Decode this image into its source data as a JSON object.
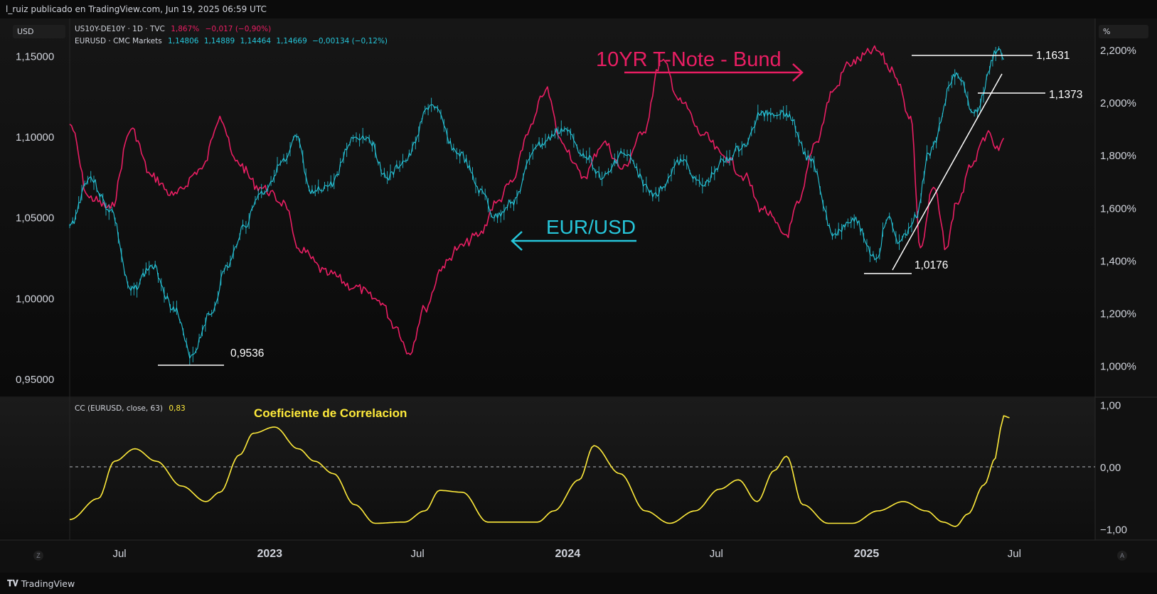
{
  "header": {
    "publisher": "l_ruiz publicado en TradingView.com, Jun 19, 2025 06:59 UTC"
  },
  "left_axis_chip": "USD",
  "right_axis_chip": "%",
  "legend": {
    "row1": {
      "symbol": "US10Y-DE10Y · 1D · TVC",
      "last": "1,867%",
      "change": "−0,017 (−0,90%)"
    },
    "row2": {
      "symbol": "EURUSD · CMC Markets",
      "open": "1,14806",
      "high": "1,14889",
      "low": "1,14464",
      "close": "1,14669",
      "change": "−0,00134 (−0,12%)"
    },
    "row3": {
      "symbol": "CC (EURUSD, close, 63)",
      "value": "0,83"
    }
  },
  "annotations": {
    "spread_label": "10YR T-Note - Bund",
    "eurusd_label": "EUR/USD",
    "corr_label": "Coeficiente de Correlacion",
    "levels": [
      "1,1631",
      "1,1373",
      "1,0176",
      "0,9536"
    ]
  },
  "footer": {
    "brand": "TradingView",
    "left_corner": "Z",
    "right_corner": "A"
  },
  "colors": {
    "eurusd": "#26c6da",
    "spread": "#e91e63",
    "cc": "#ffeb3b",
    "background": "#0b0b0b",
    "panel": "#131313"
  },
  "chart_data": [
    {
      "type": "line",
      "x_axis": {
        "tick_labels": [
          "Jul",
          "2023",
          "Jul",
          "2024",
          "Jul",
          "2025",
          "Jul"
        ],
        "dates": [
          "2022-07-01",
          "2023-01-01",
          "2023-07-01",
          "2024-01-01",
          "2024-07-01",
          "2025-01-01",
          "2025-07-01"
        ]
      },
      "y_axis_left": {
        "ticks": [
          "1,15000",
          "1,10000",
          "1,05000",
          "1,00000",
          "0,95000"
        ],
        "values": [
          1.15,
          1.1,
          1.05,
          1.0,
          0.95
        ],
        "range": [
          0.95,
          1.17
        ]
      },
      "y_axis_right": {
        "ticks": [
          "2,200%",
          "2,000%",
          "1,800%",
          "1,600%",
          "1,400%",
          "1,200%",
          "1,000%"
        ],
        "values": [
          2.2,
          2.0,
          1.8,
          1.6,
          1.4,
          1.2,
          1.0
        ],
        "range": [
          0.95,
          2.3
        ]
      },
      "series": [
        {
          "name": "EURUSD · CMC Markets",
          "axis": "left",
          "points": [
            [
              "2022-05-01",
              1.045
            ],
            [
              "2022-05-25",
              1.075
            ],
            [
              "2022-06-20",
              1.055
            ],
            [
              "2022-07-15",
              1.005
            ],
            [
              "2022-08-10",
              1.02
            ],
            [
              "2022-09-05",
              0.995
            ],
            [
              "2022-09-27",
              0.965
            ],
            [
              "2022-10-20",
              0.99
            ],
            [
              "2022-11-10",
              1.02
            ],
            [
              "2022-12-01",
              1.045
            ],
            [
              "2022-12-20",
              1.065
            ],
            [
              "2023-01-20",
              1.085
            ],
            [
              "2023-02-03",
              1.1
            ],
            [
              "2023-02-20",
              1.065
            ],
            [
              "2023-03-15",
              1.07
            ],
            [
              "2023-04-15",
              1.1
            ],
            [
              "2023-05-01",
              1.1
            ],
            [
              "2023-05-25",
              1.075
            ],
            [
              "2023-06-15",
              1.085
            ],
            [
              "2023-07-18",
              1.12
            ],
            [
              "2023-08-20",
              1.09
            ],
            [
              "2023-09-20",
              1.065
            ],
            [
              "2023-10-03",
              1.05
            ],
            [
              "2023-10-25",
              1.06
            ],
            [
              "2023-11-25",
              1.095
            ],
            [
              "2023-12-28",
              1.105
            ],
            [
              "2024-01-20",
              1.09
            ],
            [
              "2024-02-14",
              1.075
            ],
            [
              "2024-03-08",
              1.09
            ],
            [
              "2024-04-16",
              1.065
            ],
            [
              "2024-05-20",
              1.085
            ],
            [
              "2024-06-14",
              1.07
            ],
            [
              "2024-07-10",
              1.085
            ],
            [
              "2024-08-05",
              1.095
            ],
            [
              "2024-08-25",
              1.115
            ],
            [
              "2024-09-25",
              1.115
            ],
            [
              "2024-10-25",
              1.085
            ],
            [
              "2024-11-22",
              1.04
            ],
            [
              "2024-12-15",
              1.05
            ],
            [
              "2025-01-13",
              1.025
            ],
            [
              "2025-01-27",
              1.05
            ],
            [
              "2025-02-10",
              1.035
            ],
            [
              "2025-03-03",
              1.05
            ],
            [
              "2025-03-18",
              1.09
            ],
            [
              "2025-04-21",
              1.14
            ],
            [
              "2025-05-13",
              1.115
            ],
            [
              "2025-06-12",
              1.155
            ],
            [
              "2025-06-18",
              1.148
            ]
          ]
        },
        {
          "name": "US10Y-DE10Y · 1D · TVC",
          "axis": "right",
          "points": [
            [
              "2022-05-01",
              1.92
            ],
            [
              "2022-05-25",
              1.64
            ],
            [
              "2022-06-20",
              1.6
            ],
            [
              "2022-07-15",
              1.9
            ],
            [
              "2022-08-10",
              1.72
            ],
            [
              "2022-09-05",
              1.65
            ],
            [
              "2022-10-10",
              1.75
            ],
            [
              "2022-11-01",
              1.95
            ],
            [
              "2022-11-20",
              1.78
            ],
            [
              "2022-12-20",
              1.68
            ],
            [
              "2023-01-20",
              1.62
            ],
            [
              "2023-02-03",
              1.45
            ],
            [
              "2023-03-15",
              1.35
            ],
            [
              "2023-04-15",
              1.3
            ],
            [
              "2023-05-15",
              1.25
            ],
            [
              "2023-06-05",
              1.15
            ],
            [
              "2023-06-20",
              1.05
            ],
            [
              "2023-07-10",
              1.22
            ],
            [
              "2023-08-01",
              1.38
            ],
            [
              "2023-08-20",
              1.45
            ],
            [
              "2023-09-15",
              1.5
            ],
            [
              "2023-10-05",
              1.62
            ],
            [
              "2023-10-25",
              1.7
            ],
            [
              "2023-11-15",
              1.9
            ],
            [
              "2023-12-05",
              2.05
            ],
            [
              "2023-12-25",
              1.85
            ],
            [
              "2024-01-20",
              1.72
            ],
            [
              "2024-02-14",
              1.85
            ],
            [
              "2024-03-08",
              1.75
            ],
            [
              "2024-04-01",
              1.88
            ],
            [
              "2024-04-25",
              2.16
            ],
            [
              "2024-05-20",
              2.0
            ],
            [
              "2024-06-14",
              1.88
            ],
            [
              "2024-07-10",
              1.8
            ],
            [
              "2024-08-05",
              1.72
            ],
            [
              "2024-08-25",
              1.6
            ],
            [
              "2024-09-25",
              1.5
            ],
            [
              "2024-10-10",
              1.62
            ],
            [
              "2024-10-30",
              1.85
            ],
            [
              "2024-11-22",
              2.05
            ],
            [
              "2024-12-10",
              2.15
            ],
            [
              "2025-01-13",
              2.2
            ],
            [
              "2025-02-03",
              2.12
            ],
            [
              "2025-02-24",
              1.95
            ],
            [
              "2025-03-08",
              1.45
            ],
            [
              "2025-03-24",
              1.68
            ],
            [
              "2025-04-09",
              1.45
            ],
            [
              "2025-04-21",
              1.62
            ],
            [
              "2025-05-13",
              1.78
            ],
            [
              "2025-05-28",
              1.88
            ],
            [
              "2025-06-12",
              1.82
            ],
            [
              "2025-06-18",
              1.867
            ]
          ]
        }
      ]
    },
    {
      "type": "line",
      "y_axis": {
        "ticks": [
          "1,00",
          "0,00",
          "−1,00"
        ],
        "values": [
          1,
          0,
          -1
        ],
        "range": [
          -1.1,
          1.05
        ]
      },
      "series": [
        {
          "name": "CC (EURUSD, close, 63)",
          "points": [
            [
              "2022-05-01",
              -0.84
            ],
            [
              "2022-06-05",
              -0.5
            ],
            [
              "2022-06-25",
              0.1
            ],
            [
              "2022-07-20",
              0.3
            ],
            [
              "2022-08-15",
              0.1
            ],
            [
              "2022-09-15",
              -0.3
            ],
            [
              "2022-10-15",
              -0.55
            ],
            [
              "2022-11-01",
              -0.4
            ],
            [
              "2022-11-25",
              0.2
            ],
            [
              "2022-12-12",
              0.55
            ],
            [
              "2023-01-07",
              0.65
            ],
            [
              "2023-02-05",
              0.3
            ],
            [
              "2023-02-25",
              0.1
            ],
            [
              "2023-03-20",
              -0.1
            ],
            [
              "2023-04-15",
              -0.6
            ],
            [
              "2023-05-10",
              -0.9
            ],
            [
              "2023-06-15",
              -0.88
            ],
            [
              "2023-07-10",
              -0.7
            ],
            [
              "2023-07-28",
              -0.37
            ],
            [
              "2023-08-25",
              -0.4
            ],
            [
              "2023-09-25",
              -0.88
            ],
            [
              "2023-10-25",
              -0.88
            ],
            [
              "2023-11-25",
              -0.88
            ],
            [
              "2023-12-15",
              -0.7
            ],
            [
              "2024-01-15",
              -0.2
            ],
            [
              "2024-02-02",
              0.35
            ],
            [
              "2024-03-05",
              -0.1
            ],
            [
              "2024-04-05",
              -0.7
            ],
            [
              "2024-05-05",
              -0.9
            ],
            [
              "2024-06-05",
              -0.7
            ],
            [
              "2024-07-05",
              -0.35
            ],
            [
              "2024-07-28",
              -0.2
            ],
            [
              "2024-08-20",
              -0.55
            ],
            [
              "2024-09-10",
              -0.05
            ],
            [
              "2024-09-25",
              0.18
            ],
            [
              "2024-10-15",
              -0.6
            ],
            [
              "2024-11-15",
              -0.9
            ],
            [
              "2024-12-15",
              -0.9
            ],
            [
              "2025-01-15",
              -0.7
            ],
            [
              "2025-02-15",
              -0.55
            ],
            [
              "2025-03-15",
              -0.7
            ],
            [
              "2025-04-05",
              -0.88
            ],
            [
              "2025-04-20",
              -0.95
            ],
            [
              "2025-05-05",
              -0.75
            ],
            [
              "2025-05-25",
              -0.28
            ],
            [
              "2025-06-08",
              0.15
            ],
            [
              "2025-06-14",
              0.62
            ],
            [
              "2025-06-18",
              0.83
            ],
            [
              "2025-06-25",
              0.8
            ]
          ]
        }
      ]
    }
  ]
}
